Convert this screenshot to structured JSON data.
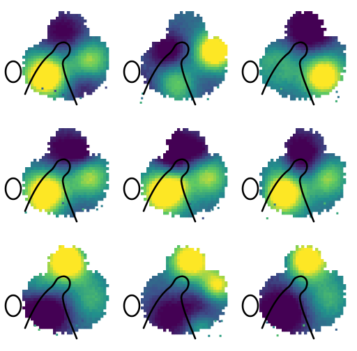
{
  "figure": {
    "rows": 3,
    "cols": 3,
    "colormap": [
      "#440154",
      "#3b528b",
      "#21918c",
      "#5ec962",
      "#fde725"
    ],
    "outline_color": "#000000",
    "background": "#ffffff"
  },
  "panels": [
    {
      "id": "r1c1",
      "seed": 11,
      "pattern": "bright-lower-left"
    },
    {
      "id": "r1c2",
      "seed": 23,
      "pattern": "bright-right"
    },
    {
      "id": "r1c3",
      "seed": 37,
      "pattern": "bright-lower-right"
    },
    {
      "id": "r2c1",
      "seed": 41,
      "pattern": "bright-lower-left"
    },
    {
      "id": "r2c2",
      "seed": 53,
      "pattern": "bright-lower-left"
    },
    {
      "id": "r2c3",
      "seed": 67,
      "pattern": "bright-lower-left"
    },
    {
      "id": "r3c1",
      "seed": 79,
      "pattern": "bright-top"
    },
    {
      "id": "r3c2",
      "seed": 83,
      "pattern": "bright-top-right"
    },
    {
      "id": "r3c3",
      "seed": 97,
      "pattern": "bright-top"
    }
  ]
}
